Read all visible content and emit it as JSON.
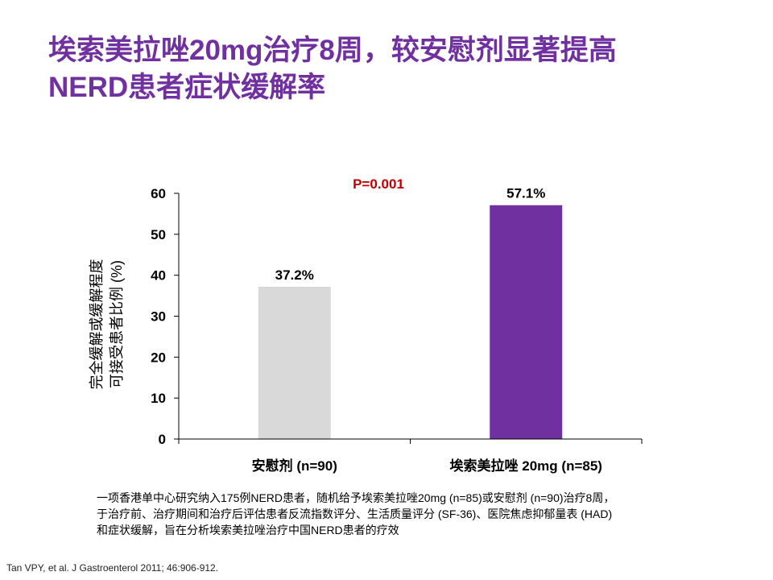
{
  "slide": {
    "title_lines": [
      "埃索美拉唑20mg治疗8周，较安慰剂显著提高",
      "NERD患者症状缓解率"
    ],
    "note_lines": [
      "一项香港单中心研究纳入175例NERD患者，随机给予埃索美拉唑20mg (n=85)或安慰剂 (n=90)治疗8周，",
      "于治疗前、治疗期间和治疗后评估患者反流指数评分、生活质量评分 (SF-36)、医院焦虑抑郁量表 (HAD)",
      "和症状缓解，旨在分析埃索美拉唑治疗中国NERD患者的疗效"
    ],
    "citation": "Tan VPY, et al. J Gastroenterol 2011; 46:906-912."
  },
  "chart_data": {
    "type": "bar",
    "categories": [
      "安慰剂 (n=90)",
      "埃索美拉唑 20mg (n=85)"
    ],
    "values": [
      37.2,
      57.1
    ],
    "value_labels": [
      "37.2%",
      "57.1%"
    ],
    "colors": [
      "#d9d9d9",
      "#7030a0"
    ],
    "ylabel_lines": [
      "完全缓解或缓解程度",
      "可接受患者比例 (%)"
    ],
    "ylim": [
      0,
      60
    ],
    "yticks": [
      0,
      10,
      20,
      30,
      40,
      50,
      60
    ],
    "annotation": "P=0.001",
    "annotation_color": "#c00000",
    "grid": false,
    "legend": "none"
  }
}
